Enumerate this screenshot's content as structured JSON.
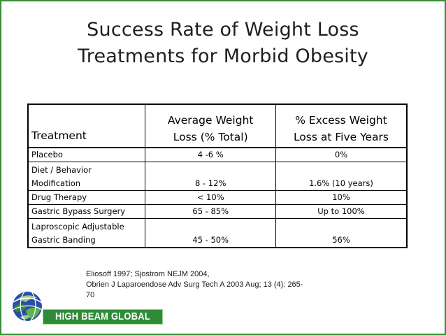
{
  "title": {
    "line1": "Success Rate of Weight Loss",
    "line2": "Treatments for Morbid Obesity"
  },
  "table": {
    "headers": {
      "treatment": "Treatment",
      "avg_line1": "Average Weight",
      "avg_line2": "Loss (% Total)",
      "excess_line1": "% Excess Weight",
      "excess_line2": "Loss at Five Years"
    },
    "rows": [
      {
        "treatment": "Placebo",
        "avg": "4 -6 %",
        "excess": "0%"
      },
      {
        "treatment_line1": "Diet / Behavior",
        "treatment_line2": "Modification",
        "avg": "8 - 12%",
        "excess": "1.6% (10 years)"
      },
      {
        "treatment": "Drug Therapy",
        "avg": "< 10%",
        "excess": "10%"
      },
      {
        "treatment": "Gastric Bypass Surgery",
        "avg": "65 - 85%",
        "excess": "Up to 100%"
      },
      {
        "treatment_line1": "Laproscopic Adjustable",
        "treatment_line2": "Gastric Banding",
        "avg": "45 - 50%",
        "excess": "56%"
      }
    ]
  },
  "citation": {
    "line1": "Eliosoff 1997; Sjostrom NEJM 2004,",
    "line2": "Obrien J Laparoendose Adv Surg Tech A 2003 Aug; 13 (4): 265-",
    "line3": "70"
  },
  "logo": {
    "text": "HIGH BEAM GLOBAL",
    "globe_icon": "globe-icon",
    "colors": {
      "green": "#2f8b37",
      "light_green": "#9ccf8e",
      "blue": "#2a4fa6",
      "border": "#3c8c3a"
    }
  }
}
